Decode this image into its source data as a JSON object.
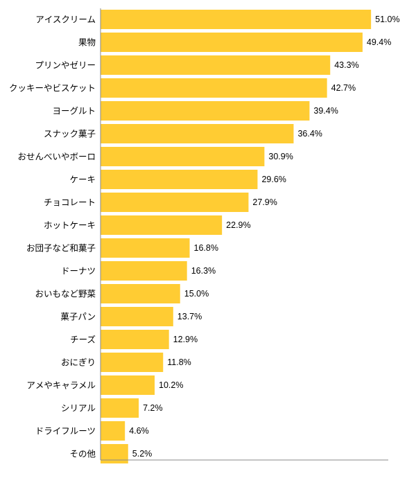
{
  "chart_data": {
    "type": "bar",
    "orientation": "horizontal",
    "title": "",
    "xlabel": "",
    "ylabel": "",
    "categories": [
      "アイスクリーム",
      "果物",
      "プリンやゼリー",
      "クッキーやビスケット",
      "ヨーグルト",
      "スナック菓子",
      "おせんべいやボーロ",
      "ケーキ",
      "チョコレート",
      "ホットケーキ",
      "お団子など和菓子",
      "ドーナツ",
      "おいもなど野菜",
      "菓子パン",
      "チーズ",
      "おにぎり",
      "アメやキャラメル",
      "シリアル",
      "ドライフルーツ",
      "その他"
    ],
    "values": [
      51.0,
      49.4,
      43.3,
      42.7,
      39.4,
      36.4,
      30.9,
      29.6,
      27.9,
      22.9,
      16.8,
      16.3,
      15.0,
      13.7,
      12.9,
      11.8,
      10.2,
      7.2,
      4.6,
      5.2
    ],
    "value_labels": [
      "51.0%",
      "49.4%",
      "43.3%",
      "42.7%",
      "39.4%",
      "36.4%",
      "30.9%",
      "29.6%",
      "27.9%",
      "22.9%",
      "16.8%",
      "16.3%",
      "15.0%",
      "13.7%",
      "12.9%",
      "11.8%",
      "10.2%",
      "7.2%",
      "4.6%",
      "5.2%"
    ],
    "unit": "%",
    "xlim": [
      0,
      60
    ],
    "bar_color": "#FFCC33",
    "axis_color": "#888888",
    "grid": false,
    "legend": "none"
  }
}
